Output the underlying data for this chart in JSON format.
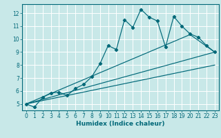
{
  "xlabel": "Humidex (Indice chaleur)",
  "bg_color": "#c8e8e8",
  "line_color": "#006878",
  "grid_color": "#ffffff",
  "xlim": [
    -0.5,
    23.5
  ],
  "ylim": [
    4.5,
    12.7
  ],
  "xticks": [
    0,
    1,
    2,
    3,
    4,
    5,
    6,
    7,
    8,
    9,
    10,
    11,
    12,
    13,
    14,
    15,
    16,
    17,
    18,
    19,
    20,
    21,
    22,
    23
  ],
  "yticks": [
    5,
    6,
    7,
    8,
    9,
    10,
    11,
    12
  ],
  "line1_x": [
    0,
    1,
    2,
    3,
    4,
    5,
    6,
    7,
    8,
    9,
    10,
    11,
    12,
    13,
    14,
    15,
    16,
    17,
    18,
    19,
    20,
    21,
    22,
    23
  ],
  "line1_y": [
    5.0,
    4.75,
    5.5,
    5.85,
    5.9,
    5.65,
    6.2,
    6.5,
    7.1,
    8.1,
    9.5,
    9.2,
    11.5,
    10.9,
    12.3,
    11.7,
    11.4,
    9.4,
    11.75,
    11.0,
    10.4,
    10.15,
    9.5,
    9.0
  ],
  "line2_x": [
    0,
    23
  ],
  "line2_y": [
    5.0,
    9.0
  ],
  "line3_x": [
    0,
    23
  ],
  "line3_y": [
    5.0,
    8.0
  ],
  "line4_x": [
    0,
    20,
    23
  ],
  "line4_y": [
    5.0,
    10.35,
    9.0
  ]
}
